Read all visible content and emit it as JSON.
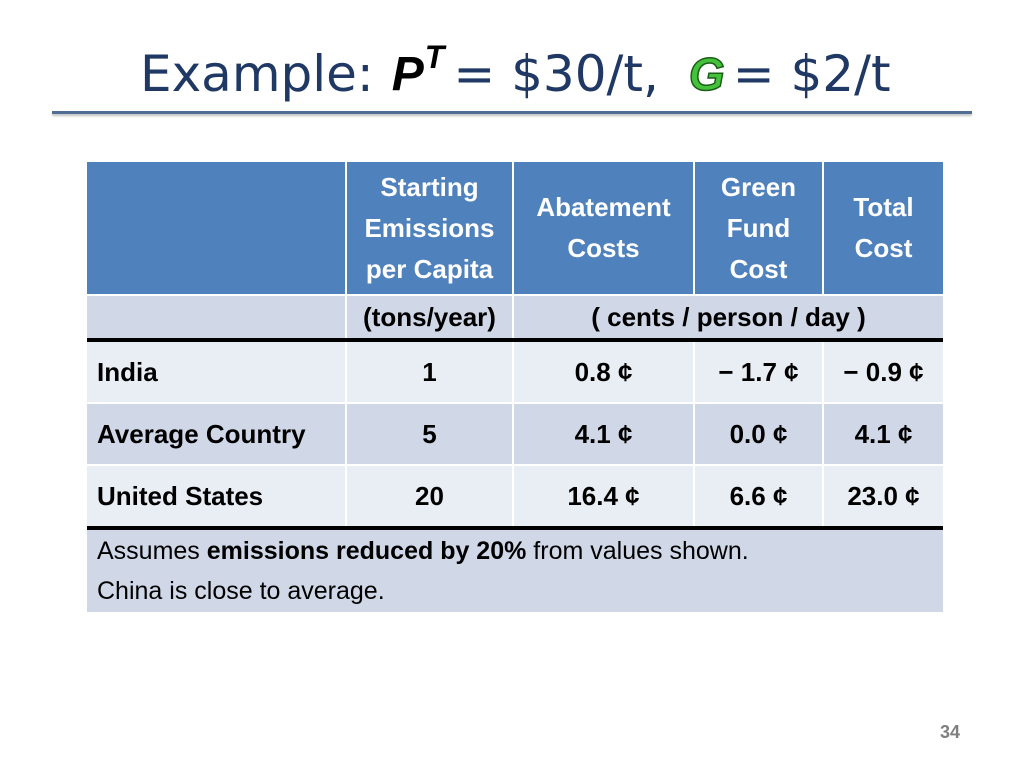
{
  "title": {
    "prefix": "Example:",
    "symbol_p": "P",
    "symbol_p_superscript": "T",
    "eq1": "= $30/t,",
    "symbol_g": "G",
    "eq2": "= $2/t"
  },
  "table": {
    "headers": [
      "",
      "Starting Emissions per Capita",
      "Abatement Costs",
      "Green Fund Cost",
      "Total Cost"
    ],
    "units": {
      "col1": "(tons/year)",
      "cost": "( cents / person / day )"
    },
    "rows": [
      {
        "label": "India",
        "emissions": "1",
        "abatement": "0.8 ¢",
        "green_fund": "− 1.7 ¢",
        "total": "− 0.9 ¢"
      },
      {
        "label": "Average Country",
        "emissions": "5",
        "abatement": "4.1 ¢",
        "green_fund": "0.0 ¢",
        "total": "4.1 ¢"
      },
      {
        "label": "United States",
        "emissions": "20",
        "abatement": "16.4 ¢",
        "green_fund": "6.6 ¢",
        "total": "23.0 ¢"
      }
    ],
    "note": {
      "line1_prefix": "Assumes ",
      "line1_bold": "emissions reduced by 20%",
      "line1_suffix": " from values shown.",
      "line2": "China is close to average."
    }
  },
  "page_number": "34",
  "colors": {
    "title": "#1f3864",
    "header_bg": "#4f81bd",
    "row_light": "#e9edf4",
    "row_dark": "#d0d8e8",
    "g_symbol": "#44c23b"
  }
}
